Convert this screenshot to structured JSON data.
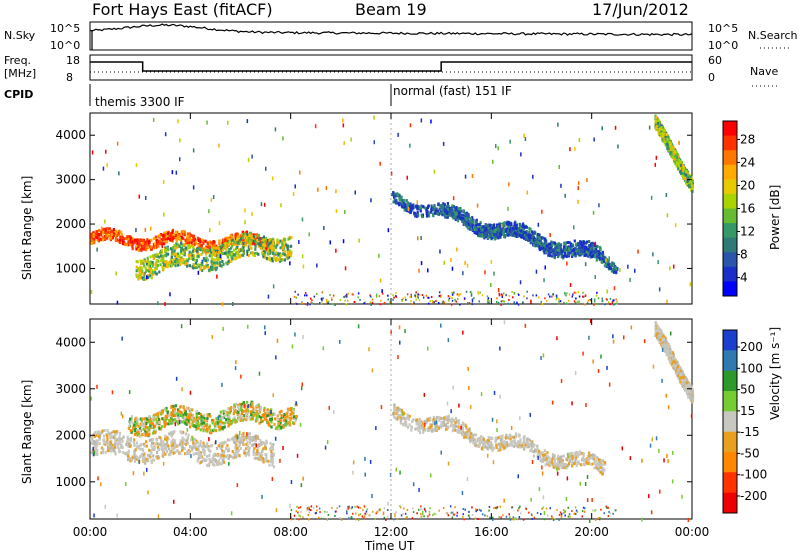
{
  "header": {
    "station": "Fort Hays East (fitACF)",
    "beam": "Beam 19",
    "date": "17/Jun/2012"
  },
  "top_panels": {
    "nsky_label": "N.Sky",
    "nsky_ticks": [
      "10^5",
      "10^0"
    ],
    "nsearch_label": "N.Search",
    "nsearch_ticks": [
      "10^5",
      "10^0"
    ],
    "freq_label_1": "Freq.",
    "freq_label_2": "[MHz]",
    "freq_ticks": [
      "18",
      "8"
    ],
    "nave_label": "Nave",
    "nave_ticks": [
      "60",
      "0"
    ],
    "cpid_label": "CPID",
    "cpid_segments": [
      {
        "label": "themis 3300 IF",
        "start_hour": 0
      },
      {
        "label": "normal (fast) 151 IF",
        "start_hour": 12
      }
    ]
  },
  "chart_data": [
    {
      "type": "heatmap",
      "name": "power",
      "xlabel": "",
      "ylabel": "Slant Range [km]",
      "xlim": [
        0,
        24
      ],
      "ylim": [
        200,
        4500
      ],
      "yticks": [
        "4000",
        "3000",
        "2000",
        "1000"
      ],
      "colorbar_label": "Power [dB]",
      "colorbar_ticks": [
        "28",
        "24",
        "20",
        "16",
        "12",
        "8",
        "4"
      ],
      "colorbar_colors": [
        "#ff0000",
        "#ff3300",
        "#ff7700",
        "#ffaa00",
        "#e8c800",
        "#aad400",
        "#66bb33",
        "#339966",
        "#2d7a77",
        "#2a55aa",
        "#1a2fc8",
        "#0000ff"
      ],
      "features": [
        {
          "from_hour": 0.0,
          "to_hour": 7.3,
          "range_start": 1700,
          "range_end": 1600,
          "width": 250,
          "band": "high"
        },
        {
          "from_hour": 1.8,
          "to_hour": 8.0,
          "range_start": 1100,
          "range_end": 1600,
          "width": 500,
          "band": "mid"
        },
        {
          "from_hour": 12.0,
          "to_hour": 20.5,
          "range_start": 2600,
          "range_end": 1300,
          "width": 250,
          "band": "low"
        },
        {
          "from_hour": 14.0,
          "to_hour": 21.0,
          "range_start": 2200,
          "range_end": 1100,
          "width": 200,
          "band": "low"
        },
        {
          "from_hour": 22.5,
          "to_hour": 24.0,
          "range_start": 4200,
          "range_end": 3000,
          "width": 300,
          "band": "mid"
        }
      ]
    },
    {
      "type": "heatmap",
      "name": "velocity",
      "xlabel": "Time UT",
      "ylabel": "Slant Range [km]",
      "xlim": [
        0,
        24
      ],
      "ylim": [
        200,
        4500
      ],
      "xticks": [
        "00:00",
        "04:00",
        "08:00",
        "12:00",
        "16:00",
        "20:00",
        "00:00"
      ],
      "yticks": [
        "4000",
        "3000",
        "2000",
        "1000"
      ],
      "colorbar_label": "Velocity [m s⁻¹]",
      "colorbar_ticks": [
        "200",
        "100",
        "50",
        "15",
        "-15",
        "-50",
        "-100",
        "-200"
      ],
      "colorbar_colors": [
        "#1a3fcc",
        "#2f7ab0",
        "#2b9a2b",
        "#77cc33",
        "#c8c8c0",
        "#e8a020",
        "#ff8800",
        "#ff3300",
        "#ee0000"
      ],
      "features": [
        {
          "from_hour": 0.0,
          "to_hour": 7.3,
          "range_start": 1800,
          "range_end": 1700,
          "width": 500,
          "band": "neutral"
        },
        {
          "from_hour": 1.5,
          "to_hour": 8.2,
          "range_start": 2300,
          "range_end": 2500,
          "width": 400,
          "band": "mixed"
        },
        {
          "from_hour": 12.0,
          "to_hour": 20.5,
          "range_start": 2500,
          "range_end": 1300,
          "width": 300,
          "band": "neutral"
        },
        {
          "from_hour": 22.5,
          "to_hour": 24.0,
          "range_start": 4200,
          "range_end": 3000,
          "width": 300,
          "band": "neutral"
        }
      ]
    }
  ]
}
